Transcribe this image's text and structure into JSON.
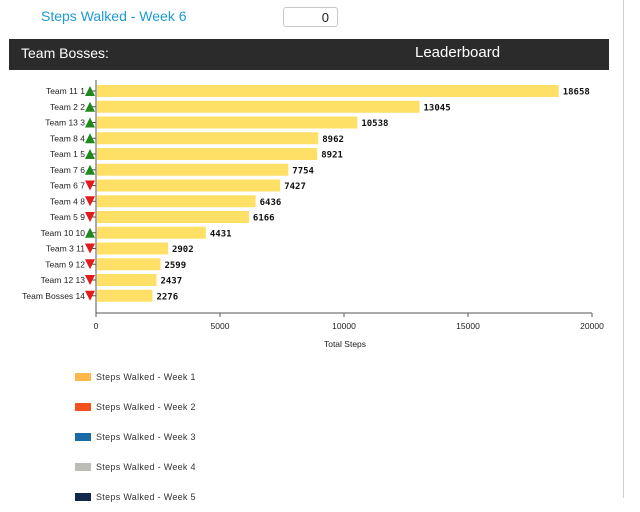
{
  "top": {
    "title": "Steps Walked - Week 6",
    "input_value": "0"
  },
  "header": {
    "left": "Team Bosses:",
    "center": "Leaderboard"
  },
  "colors": {
    "bar": "#ffe066",
    "up": "#1e8a1e",
    "down": "#e31b1b"
  },
  "chart_data": {
    "type": "bar",
    "orientation": "horizontal",
    "xlabel": "Total Steps",
    "xlim": [
      0,
      20000
    ],
    "xticks": [
      0,
      5000,
      10000,
      15000,
      20000
    ],
    "categories": [
      "Team 11 1",
      "Team 2 2",
      "Team 13 3",
      "Team 8 4",
      "Team 1 5",
      "Team 7 6",
      "Team 6 7",
      "Team 4 8",
      "Team 5 9",
      "Team 10 10",
      "Team 3 11",
      "Team 9 12",
      "Team 12 13",
      "Team Bosses 14"
    ],
    "values": [
      18658,
      13045,
      10538,
      8962,
      8921,
      7754,
      7427,
      6436,
      6166,
      4431,
      2902,
      2599,
      2437,
      2276
    ],
    "trend": [
      "up",
      "up",
      "up",
      "up",
      "up",
      "up",
      "down",
      "down",
      "down",
      "up",
      "down",
      "down",
      "down",
      "down"
    ],
    "legend": [
      {
        "label": "Steps Walked - Week 1",
        "color": "#ffb94a"
      },
      {
        "label": "Steps Walked - Week 2",
        "color": "#f4511e"
      },
      {
        "label": "Steps Walked - Week 3",
        "color": "#1a6aa5"
      },
      {
        "label": "Steps Walked - Week 4",
        "color": "#bdbdb7"
      },
      {
        "label": "Steps Walked - Week 5",
        "color": "#13294b"
      }
    ]
  }
}
